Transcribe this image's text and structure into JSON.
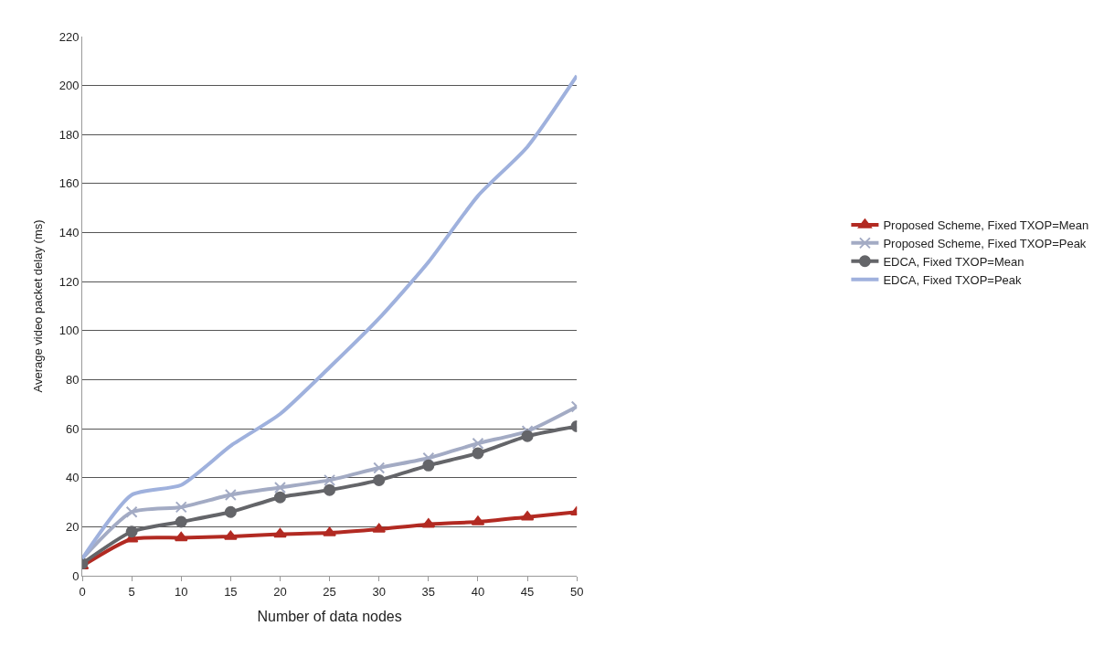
{
  "chart_data": {
    "type": "line",
    "xlabel": "Number of data nodes",
    "ylabel": "Average video packet delay (ms)",
    "x": [
      0,
      5,
      10,
      15,
      20,
      25,
      30,
      35,
      40,
      45,
      50
    ],
    "xlim": [
      0,
      50
    ],
    "xticks": [
      0,
      5,
      10,
      15,
      20,
      25,
      30,
      35,
      40,
      45,
      50
    ],
    "ylim": [
      0,
      220
    ],
    "yticks": [
      0,
      20,
      40,
      60,
      80,
      100,
      120,
      140,
      160,
      180,
      200,
      220
    ],
    "grid": "y",
    "legend": "right",
    "series": [
      {
        "name": "Proposed Scheme, Fixed TXOP=Mean",
        "color": "#b22a22",
        "marker": "triangle",
        "values": [
          4,
          15,
          15.5,
          16,
          17,
          17.5,
          19,
          21,
          22,
          24,
          26
        ]
      },
      {
        "name": "Proposed Scheme, Fixed TXOP=Peak",
        "color": "#a3abc4",
        "marker": "cross",
        "values": [
          7,
          26,
          28,
          33,
          36,
          39,
          44,
          48,
          54,
          59,
          69
        ]
      },
      {
        "name": "EDCA, Fixed TXOP=Mean",
        "color": "#646569",
        "marker": "circle",
        "values": [
          5,
          18,
          22,
          26,
          32,
          35,
          39,
          45,
          50,
          57,
          61
        ]
      },
      {
        "name": "EDCA, Fixed TXOP=Peak",
        "color": "#9fb1dd",
        "marker": "none",
        "values": [
          7,
          33,
          37,
          53,
          66,
          85,
          105,
          128,
          155,
          175,
          204
        ]
      }
    ]
  }
}
